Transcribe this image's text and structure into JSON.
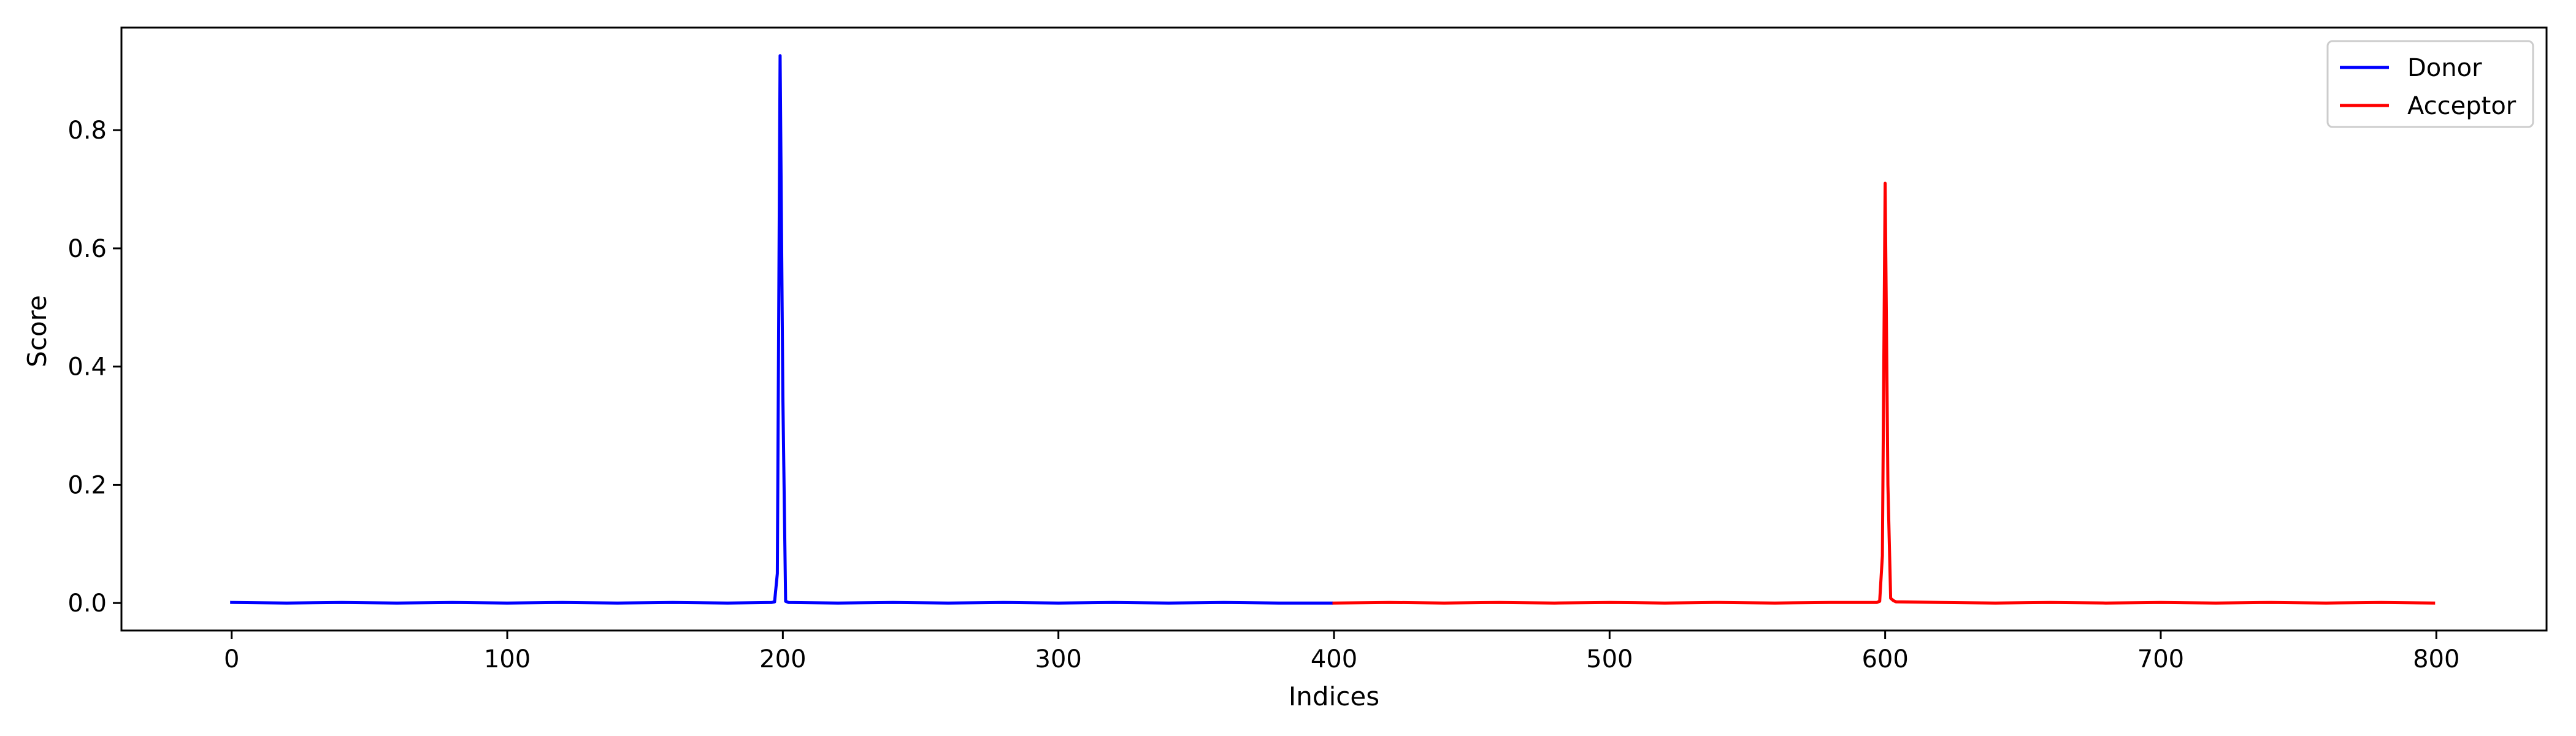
{
  "chart_data": {
    "type": "line",
    "title": "",
    "xlabel": "Indices",
    "ylabel": "Score",
    "xlim": [
      -40,
      840
    ],
    "ylim": [
      -0.0465,
      0.9735
    ],
    "xticks": [
      0,
      100,
      200,
      300,
      400,
      500,
      600,
      700,
      800
    ],
    "yticks": [
      0.0,
      0.2,
      0.4,
      0.6,
      0.8
    ],
    "xtick_labels": [
      "0",
      "100",
      "200",
      "300",
      "400",
      "500",
      "600",
      "700",
      "800"
    ],
    "ytick_labels": [
      "0.0",
      "0.2",
      "0.4",
      "0.6",
      "0.8"
    ],
    "grid": false,
    "legend_position": "top-right",
    "series": [
      {
        "name": "Donor",
        "color": "#0000ff",
        "points": [
          [
            0,
            0.001
          ],
          [
            20,
            0.0
          ],
          [
            40,
            0.001
          ],
          [
            60,
            0.0
          ],
          [
            80,
            0.001
          ],
          [
            100,
            0.0
          ],
          [
            120,
            0.001
          ],
          [
            140,
            0.0
          ],
          [
            160,
            0.001
          ],
          [
            180,
            0.0
          ],
          [
            196,
            0.001
          ],
          [
            197,
            0.002
          ],
          [
            198,
            0.05
          ],
          [
            199,
            0.926
          ],
          [
            200,
            0.35
          ],
          [
            201,
            0.003
          ],
          [
            202,
            0.001
          ],
          [
            220,
            0.0
          ],
          [
            240,
            0.001
          ],
          [
            260,
            0.0
          ],
          [
            280,
            0.001
          ],
          [
            300,
            0.0
          ],
          [
            320,
            0.001
          ],
          [
            340,
            0.0
          ],
          [
            360,
            0.001
          ],
          [
            380,
            0.0
          ],
          [
            399,
            0.0
          ]
        ]
      },
      {
        "name": "Acceptor",
        "color": "#ff0000",
        "points": [
          [
            400,
            0.0
          ],
          [
            420,
            0.001
          ],
          [
            440,
            0.0
          ],
          [
            460,
            0.001
          ],
          [
            480,
            0.0
          ],
          [
            500,
            0.001
          ],
          [
            520,
            0.0
          ],
          [
            540,
            0.001
          ],
          [
            560,
            0.0
          ],
          [
            580,
            0.001
          ],
          [
            597,
            0.001
          ],
          [
            598,
            0.003
          ],
          [
            599,
            0.08
          ],
          [
            600,
            0.71
          ],
          [
            601,
            0.2
          ],
          [
            602,
            0.008
          ],
          [
            603,
            0.004
          ],
          [
            604,
            0.002
          ],
          [
            620,
            0.001
          ],
          [
            640,
            0.0
          ],
          [
            660,
            0.001
          ],
          [
            680,
            0.0
          ],
          [
            700,
            0.001
          ],
          [
            720,
            0.0
          ],
          [
            740,
            0.001
          ],
          [
            760,
            0.0
          ],
          [
            780,
            0.001
          ],
          [
            799,
            0.0
          ]
        ]
      }
    ]
  }
}
